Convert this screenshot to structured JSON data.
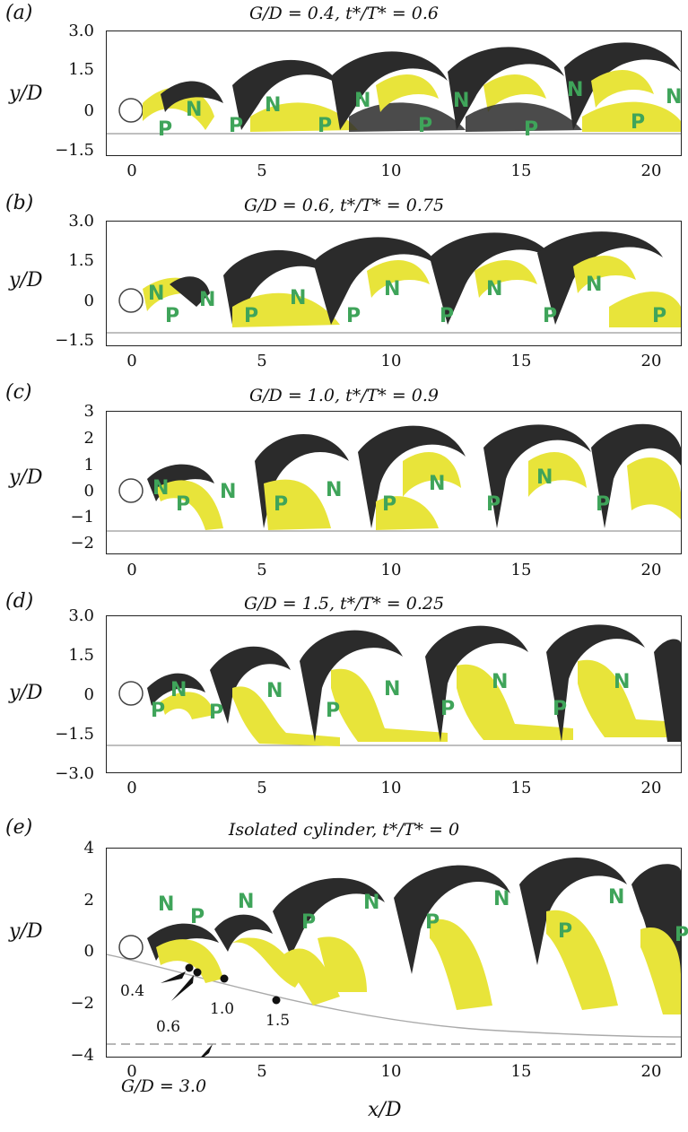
{
  "figure": {
    "xlabel": "x/D",
    "ylabel": "y/D",
    "xticks": [
      "0",
      "5",
      "10",
      "15",
      "20"
    ],
    "colors": {
      "negative_vortex": "#2b2b2b",
      "positive_vortex": "#e8e43a",
      "label_green": "#3fa45a"
    }
  },
  "panels": [
    {
      "label": "(a)",
      "title": "G/D = 0.4, t*/T* = 0.6",
      "yticks": [
        "3.0",
        "1.5",
        "0",
        "−1.5"
      ],
      "vortex_labels": [
        "N",
        "N",
        "N",
        "N",
        "N",
        "N",
        "P",
        "P",
        "P",
        "P",
        "P",
        "P"
      ]
    },
    {
      "label": "(b)",
      "title": "G/D = 0.6, t*/T* = 0.75",
      "yticks": [
        "3.0",
        "1.5",
        "0",
        "−1.5"
      ],
      "vortex_labels": [
        "N",
        "N",
        "N",
        "N",
        "N",
        "N",
        "P",
        "P",
        "P",
        "P",
        "P",
        "P"
      ]
    },
    {
      "label": "(c)",
      "title": "G/D = 1.0, t*/T* = 0.9",
      "yticks": [
        "3",
        "2",
        "1",
        "0",
        "−1",
        "−2"
      ],
      "vortex_labels": [
        "N",
        "N",
        "N",
        "N",
        "N",
        "P",
        "P",
        "P",
        "P",
        "P"
      ]
    },
    {
      "label": "(d)",
      "title": "G/D = 1.5, t*/T* = 0.25",
      "yticks": [
        "3.0",
        "1.5",
        "0",
        "−1.5",
        "−3.0"
      ],
      "vortex_labels": [
        "N",
        "N",
        "N",
        "N",
        "N",
        "P",
        "P",
        "P",
        "P",
        "P"
      ]
    },
    {
      "label": "(e)",
      "title": "Isolated cylinder, t*/T* = 0",
      "yticks": [
        "4",
        "2",
        "0",
        "−2",
        "−4"
      ],
      "vortex_labels": [
        "N",
        "N",
        "N",
        "N",
        "N",
        "P",
        "P",
        "P",
        "P",
        "P",
        "P"
      ],
      "annotations": [
        "0.4",
        "0.6",
        "1.0",
        "1.5"
      ],
      "gap_label": "G/D = 3.0"
    }
  ]
}
